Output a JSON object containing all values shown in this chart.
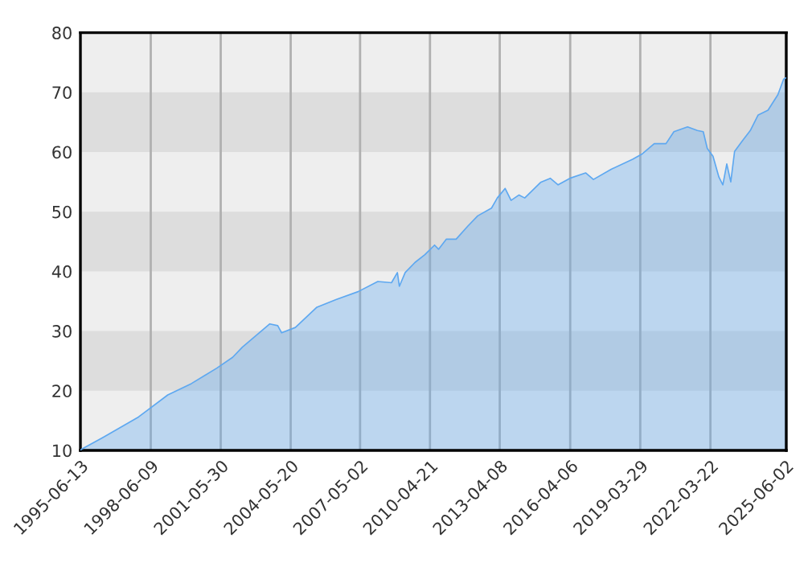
{
  "chart_data": {
    "type": "area",
    "x": [
      "1995-06-13",
      "1995-07",
      "1996-06",
      "1997-12",
      "1999-03",
      "2000-03",
      "2001-04",
      "2001-12",
      "2002-05",
      "2003-07",
      "2003-11",
      "2004-01",
      "2004-08",
      "2005-07",
      "2006-05",
      "2007-04",
      "2008-02",
      "2008-09",
      "2008-12",
      "2009-01",
      "2009-04",
      "2009-09",
      "2010-02",
      "2010-07",
      "2010-09",
      "2011-01",
      "2011-06",
      "2011-12",
      "2012-05",
      "2012-12",
      "2013-03",
      "2013-07",
      "2013-10",
      "2014-02",
      "2014-05",
      "2015-01",
      "2015-06",
      "2015-10",
      "2016-04",
      "2016-12",
      "2017-04",
      "2018-01",
      "2018-12",
      "2019-05",
      "2019-11",
      "2020-05",
      "2020-09",
      "2021-04",
      "2021-09",
      "2021-12",
      "2022-02",
      "2022-05",
      "2022-08",
      "2022-10",
      "2022-12",
      "2023-02",
      "2023-04",
      "2023-08",
      "2023-12",
      "2024-04",
      "2024-09",
      "2025-02",
      "2025-05",
      "2025-06-02"
    ],
    "series": [
      {
        "color": "#5ea8f0",
        "values": [
          10.0,
          10.2,
          12.2,
          15.6,
          19.3,
          21.2,
          23.8,
          25.6,
          27.3,
          31.2,
          30.9,
          29.7,
          30.6,
          34.0,
          35.3,
          36.6,
          38.3,
          38.1,
          39.8,
          37.5,
          39.8,
          41.5,
          42.8,
          44.4,
          43.7,
          45.4,
          45.4,
          47.6,
          49.3,
          50.6,
          52.3,
          53.9,
          51.9,
          52.8,
          52.3,
          54.9,
          55.6,
          54.5,
          55.6,
          56.5,
          55.4,
          57.1,
          58.8,
          59.7,
          61.4,
          61.4,
          63.4,
          64.2,
          63.6,
          63.4,
          60.6,
          59.3,
          55.8,
          54.5,
          58.0,
          55.0,
          60.1,
          61.9,
          63.6,
          66.2,
          67.0,
          69.6,
          72.2,
          72.4
        ]
      }
    ],
    "xlim": [
      "1995-06-13",
      "2025-06-12"
    ],
    "xticks": [
      "1995-06-13",
      "1998-06-09",
      "2001-05-30",
      "2004-05-20",
      "2007-05-02",
      "2010-04-21",
      "2013-04-08",
      "2016-04-06",
      "2019-03-29",
      "2022-03-22",
      "2025-06-02"
    ],
    "ylim": [
      10,
      80
    ],
    "yticks": [
      10,
      20,
      30,
      40,
      50,
      60,
      70,
      80
    ],
    "grid": "x",
    "bands": [
      {
        "axis": "y",
        "from": 20,
        "to": 30,
        "color": "#dddddd"
      },
      {
        "axis": "y",
        "from": 40,
        "to": 50,
        "color": "#dddddd"
      },
      {
        "axis": "y",
        "from": 60,
        "to": 70,
        "color": "#dddddd"
      }
    ]
  }
}
